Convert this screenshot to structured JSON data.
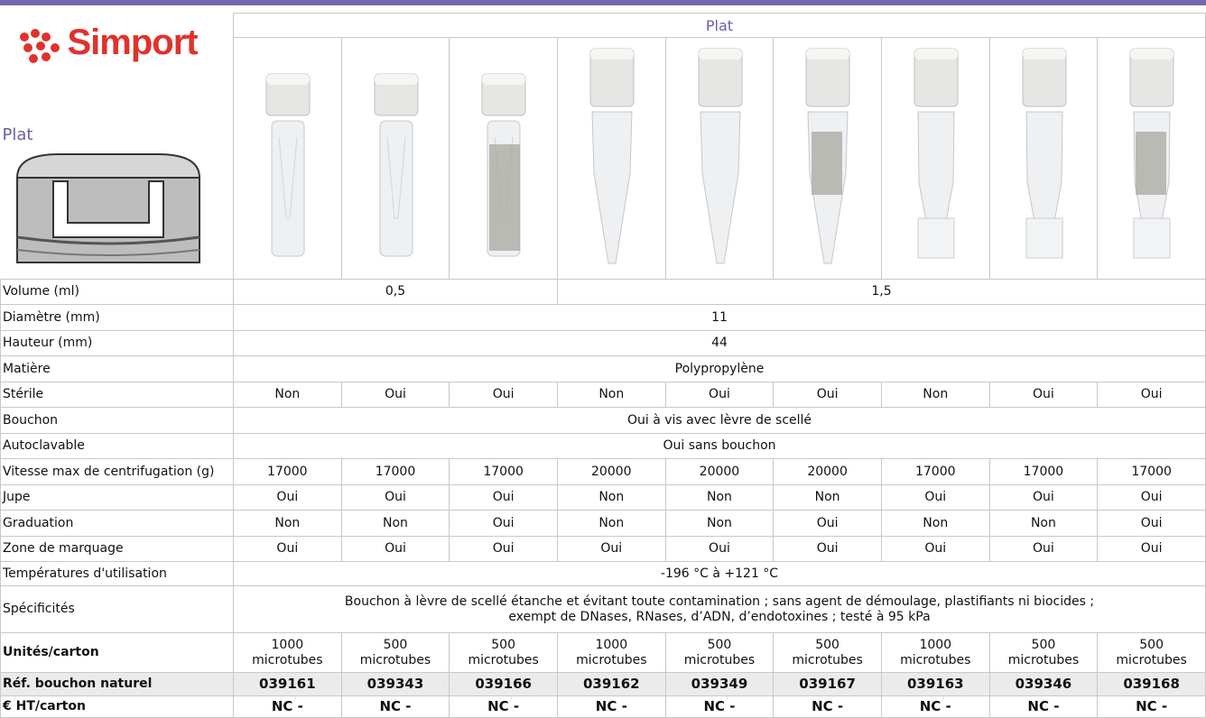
{
  "brand": "Simport",
  "side_label": "Plat",
  "table": {
    "header": "Plat",
    "rows": [
      {
        "label": "Volume (ml)",
        "cells": [
          "0,5",
          "1,5"
        ]
      },
      {
        "label": "Diamètre (mm)",
        "cells": [
          "11"
        ]
      },
      {
        "label": "Hauteur (mm)",
        "cells": [
          "44"
        ]
      },
      {
        "label": "Matière",
        "cells": [
          "Polypropylène"
        ]
      },
      {
        "label": "Stérile",
        "cells": [
          "Non",
          "Oui",
          "Oui",
          "Non",
          "Oui",
          "Oui",
          "Non",
          "Oui",
          "Oui"
        ]
      },
      {
        "label": "Bouchon",
        "cells": [
          "Oui à vis avec lèvre de scellé"
        ]
      },
      {
        "label": "Autoclavable",
        "cells": [
          "Oui sans bouchon"
        ]
      },
      {
        "label": "Vitesse max de centrifugation (g)",
        "cells": [
          "17000",
          "17000",
          "17000",
          "20000",
          "20000",
          "20000",
          "17000",
          "17000",
          "17000"
        ]
      },
      {
        "label": "Jupe",
        "cells": [
          "Oui",
          "Oui",
          "Oui",
          "Non",
          "Non",
          "Non",
          "Oui",
          "Oui",
          "Oui"
        ]
      },
      {
        "label": "Graduation",
        "cells": [
          "Non",
          "Non",
          "Oui",
          "Non",
          "Non",
          "Oui",
          "Non",
          "Non",
          "Oui"
        ]
      },
      {
        "label": "Zone de marquage",
        "cells": [
          "Oui",
          "Oui",
          "Oui",
          "Oui",
          "Oui",
          "Oui",
          "Oui",
          "Oui",
          "Oui"
        ]
      },
      {
        "label": "Températures d'utilisation",
        "cells": [
          "-196 °C à +121 °C"
        ]
      },
      {
        "label": "Spécificités",
        "cells": [
          "Bouchon à lèvre de scellé étanche et évitant toute contamination ; sans agent de démoulage, plastifiants ni biocides ;\nexempt de DNases, RNases, d’ADN, d’endotoxines ; testé à 95 kPa"
        ]
      },
      {
        "label": "Unités/carton",
        "cells": [
          "1000\nmicrotubes",
          "500\nmicrotubes",
          "500\nmicrotubes",
          "1000\nmicrotubes",
          "500\nmicrotubes",
          "500\nmicrotubes",
          "1000\nmicrotubes",
          "500\nmicrotubes",
          "500\nmicrotubes"
        ]
      },
      {
        "label": "Réf. bouchon naturel",
        "cells": [
          "039161",
          "039343",
          "039166",
          "039162",
          "039349",
          "039167",
          "039163",
          "039346",
          "039168"
        ]
      },
      {
        "label": "€ HT/carton",
        "cells": [
          "NC -",
          "NC -",
          "NC -",
          "NC -",
          "NC -",
          "NC -",
          "NC -",
          "NC -",
          "NC -"
        ]
      }
    ]
  }
}
